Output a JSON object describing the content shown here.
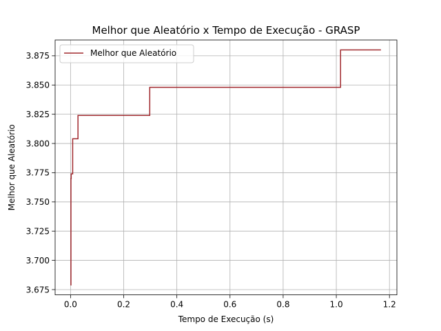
{
  "chart_data": {
    "type": "line",
    "title": "Melhor que Aleatório x Tempo de Execução - GRASP",
    "xlabel": "Tempo de Execução (s)",
    "ylabel": "Melhor que Aleatório",
    "xlim": [
      -0.058,
      1.228
    ],
    "ylim": [
      3.6705,
      3.8885
    ],
    "x_ticks": [
      0.0,
      0.2,
      0.4,
      0.6,
      0.8,
      1.0,
      1.2
    ],
    "x_tick_labels": [
      "0.0",
      "0.2",
      "0.4",
      "0.6",
      "0.8",
      "1.0",
      "1.2"
    ],
    "y_ticks": [
      3.675,
      3.7,
      3.725,
      3.75,
      3.775,
      3.8,
      3.825,
      3.85,
      3.875
    ],
    "y_tick_labels": [
      "3.675",
      "3.700",
      "3.725",
      "3.750",
      "3.775",
      "3.800",
      "3.825",
      "3.850",
      "3.875"
    ],
    "grid": true,
    "legend_position": "top-left",
    "series": [
      {
        "name": "Melhor que Aleatório",
        "color": "#a0282d",
        "step": true,
        "x": [
          0.0,
          0.0015,
          0.0025,
          0.008,
          0.028,
          0.298,
          1.016,
          1.168
        ],
        "y": [
          3.679,
          3.77,
          3.774,
          3.804,
          3.824,
          3.848,
          3.88,
          3.88
        ]
      }
    ]
  }
}
